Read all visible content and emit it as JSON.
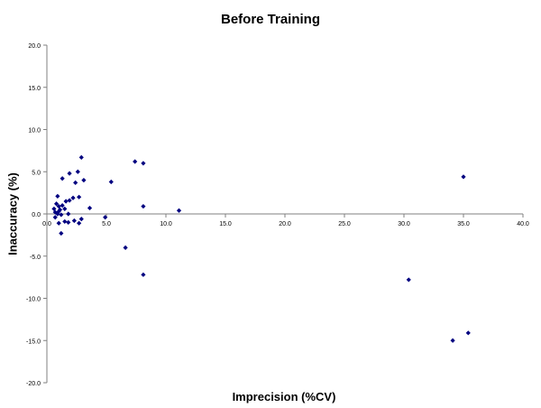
{
  "chart_data": {
    "type": "scatter",
    "title": "Before Training",
    "xlabel": "Imprecision (%CV)",
    "ylabel": "Inaccuracy (%)",
    "xlim": [
      0,
      40
    ],
    "ylim": [
      -20,
      20
    ],
    "x_ticks": [
      "0.0",
      "5.0",
      "10.0",
      "15.0",
      "20.0",
      "25.0",
      "30.0",
      "35.0",
      "40.0"
    ],
    "y_ticks": [
      "20.0",
      "15.0",
      "10.0",
      "5.0",
      "0.0",
      "-5.0",
      "-10.0",
      "-15.0",
      "-20.0"
    ],
    "grid": false,
    "marker_color": "#000080",
    "points": [
      [
        2.9,
        6.7
      ],
      [
        7.4,
        6.2
      ],
      [
        8.1,
        6.0
      ],
      [
        1.9,
        4.8
      ],
      [
        2.6,
        5.0
      ],
      [
        5.4,
        3.8
      ],
      [
        3.1,
        4.0
      ],
      [
        1.3,
        4.2
      ],
      [
        2.4,
        3.7
      ],
      [
        2.7,
        2.0
      ],
      [
        0.9,
        2.1
      ],
      [
        1.6,
        1.5
      ],
      [
        1.9,
        1.6
      ],
      [
        2.2,
        1.9
      ],
      [
        3.6,
        0.7
      ],
      [
        8.1,
        0.9
      ],
      [
        11.1,
        0.4
      ],
      [
        0.8,
        1.2
      ],
      [
        1.0,
        0.9
      ],
      [
        1.3,
        1.0
      ],
      [
        0.6,
        0.6
      ],
      [
        1.1,
        0.5
      ],
      [
        1.5,
        0.6
      ],
      [
        1.0,
        0.3
      ],
      [
        0.7,
        0.2
      ],
      [
        0.9,
        0.0
      ],
      [
        1.2,
        -0.1
      ],
      [
        1.8,
        0.0
      ],
      [
        0.7,
        -0.4
      ],
      [
        2.9,
        -0.6
      ],
      [
        4.9,
        -0.4
      ],
      [
        1.5,
        -0.9
      ],
      [
        2.3,
        -0.8
      ],
      [
        1.8,
        -1.0
      ],
      [
        2.7,
        -1.1
      ],
      [
        1.0,
        -1.1
      ],
      [
        1.2,
        -2.3
      ],
      [
        6.6,
        -4.0
      ],
      [
        8.1,
        -7.2
      ],
      [
        30.4,
        -7.8
      ],
      [
        35.0,
        4.4
      ],
      [
        34.1,
        -15.0
      ],
      [
        35.4,
        -14.1
      ]
    ]
  }
}
